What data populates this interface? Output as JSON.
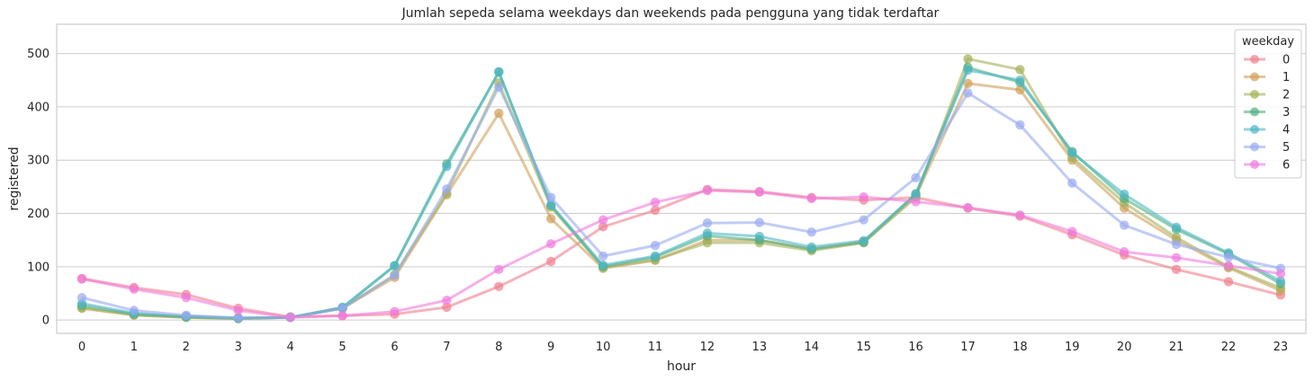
{
  "chart_data": {
    "type": "line",
    "title": "Jumlah sepeda selama weekdays dan weekends pada pengguna yang tidak terdaftar",
    "xlabel": "hour",
    "ylabel": "registered",
    "categories": [
      "0",
      "1",
      "2",
      "3",
      "4",
      "5",
      "6",
      "7",
      "8",
      "9",
      "10",
      "11",
      "12",
      "13",
      "14",
      "15",
      "16",
      "17",
      "18",
      "19",
      "20",
      "21",
      "22",
      "23"
    ],
    "ylim": [
      -25,
      555
    ],
    "yticks": [
      0,
      100,
      200,
      300,
      400,
      500
    ],
    "grid": true,
    "legend": {
      "title": "weekday",
      "placement": "top-right"
    },
    "series": [
      {
        "name": "0",
        "color": "#f07f8e",
        "values": [
          78,
          61,
          48,
          22,
          6,
          8,
          11,
          24,
          63,
          110,
          175,
          206,
          245,
          241,
          230,
          225,
          230,
          210,
          195,
          160,
          122,
          95,
          72,
          47
        ]
      },
      {
        "name": "1",
        "color": "#d1a05a",
        "values": [
          22,
          9,
          5,
          3,
          5,
          22,
          80,
          235,
          388,
          190,
          97,
          112,
          150,
          150,
          133,
          147,
          233,
          444,
          432,
          300,
          210,
          150,
          98,
          55
        ]
      },
      {
        "name": "2",
        "color": "#a3b25a",
        "values": [
          23,
          10,
          5,
          3,
          5,
          22,
          85,
          238,
          445,
          212,
          99,
          113,
          145,
          145,
          130,
          145,
          230,
          490,
          470,
          305,
          220,
          155,
          100,
          60
        ]
      },
      {
        "name": "3",
        "color": "#4eb081",
        "values": [
          27,
          11,
          6,
          3,
          5,
          23,
          102,
          293,
          465,
          215,
          100,
          118,
          158,
          150,
          133,
          146,
          237,
          474,
          446,
          316,
          228,
          170,
          124,
          68
        ]
      },
      {
        "name": "4",
        "color": "#4fb5c4",
        "values": [
          31,
          13,
          7,
          4,
          5,
          24,
          102,
          288,
          466,
          216,
          103,
          120,
          163,
          157,
          137,
          149,
          236,
          469,
          450,
          314,
          236,
          174,
          126,
          73
        ]
      },
      {
        "name": "5",
        "color": "#98aaf0",
        "values": [
          42,
          18,
          9,
          4,
          5,
          22,
          84,
          246,
          437,
          230,
          120,
          140,
          182,
          183,
          165,
          188,
          267,
          426,
          366,
          257,
          178,
          142,
          118,
          97
        ]
      },
      {
        "name": "6",
        "color": "#f07bde",
        "values": [
          77,
          58,
          42,
          18,
          5,
          8,
          16,
          37,
          95,
          143,
          188,
          221,
          243,
          240,
          228,
          231,
          222,
          211,
          197,
          166,
          128,
          117,
          102,
          87
        ]
      }
    ]
  }
}
